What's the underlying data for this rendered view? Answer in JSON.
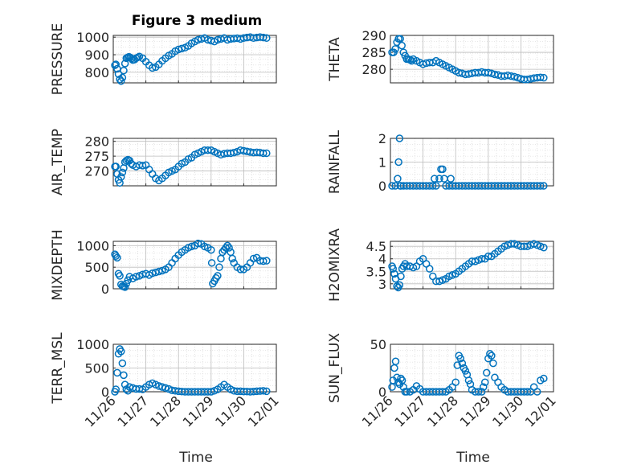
{
  "figure": {
    "title": "Figure 3 medium",
    "xlabel_left": "Time",
    "xlabel_right": "Time",
    "x_tick_labels": [
      "11/26",
      "11/27",
      "11/28",
      "11/29",
      "11/30",
      "12/01"
    ],
    "colors": {
      "marker": "#0072BD",
      "grid": "#d0d0d0",
      "axis": "#262626"
    }
  },
  "chart_data": [
    {
      "id": "pressure",
      "type": "scatter",
      "ylabel": "PRESSURE",
      "xlim": [
        0,
        5
      ],
      "ylim": [
        740,
        1010
      ],
      "y_ticks": [
        800,
        900,
        1000
      ],
      "y_tick_labels": [
        "800",
        "900",
        "1000"
      ],
      "grid": true,
      "marker": "circle-open",
      "x": [
        0.05,
        0.08,
        0.12,
        0.16,
        0.2,
        0.24,
        0.28,
        0.32,
        0.36,
        0.4,
        0.44,
        0.48,
        0.52,
        0.56,
        0.6,
        0.65,
        0.7,
        0.75,
        0.8,
        0.9,
        1.0,
        1.1,
        1.2,
        1.3,
        1.4,
        1.5,
        1.6,
        1.7,
        1.8,
        1.9,
        2.0,
        2.1,
        2.2,
        2.3,
        2.4,
        2.5,
        2.6,
        2.7,
        2.8,
        2.9,
        3.0,
        3.1,
        3.2,
        3.3,
        3.4,
        3.5,
        3.6,
        3.7,
        3.8,
        3.9,
        4.0,
        4.1,
        4.2,
        4.3,
        4.4,
        4.5,
        4.6,
        4.7
      ],
      "y": [
        840,
        845,
        820,
        790,
        760,
        750,
        770,
        810,
        850,
        880,
        885,
        888,
        885,
        878,
        870,
        872,
        880,
        885,
        890,
        880,
        860,
        840,
        825,
        830,
        845,
        865,
        880,
        895,
        905,
        920,
        930,
        935,
        940,
        950,
        965,
        975,
        985,
        990,
        995,
        985,
        980,
        975,
        985,
        990,
        995,
        985,
        990,
        992,
        994,
        990,
        995,
        998,
        1000,
        995,
        998,
        1000,
        998,
        995
      ]
    },
    {
      "id": "theta",
      "type": "scatter",
      "ylabel": "THETA",
      "xlim": [
        0,
        5
      ],
      "ylim": [
        276,
        290
      ],
      "y_ticks": [
        280,
        285,
        290
      ],
      "y_tick_labels": [
        "280",
        "285",
        "290"
      ],
      "grid": true,
      "marker": "circle-open",
      "x": [
        0.05,
        0.1,
        0.15,
        0.2,
        0.25,
        0.3,
        0.35,
        0.4,
        0.45,
        0.5,
        0.55,
        0.6,
        0.65,
        0.7,
        0.8,
        0.9,
        1.0,
        1.1,
        1.2,
        1.3,
        1.4,
        1.5,
        1.6,
        1.7,
        1.8,
        1.9,
        2.0,
        2.1,
        2.2,
        2.3,
        2.4,
        2.5,
        2.6,
        2.7,
        2.8,
        2.9,
        3.0,
        3.1,
        3.2,
        3.3,
        3.4,
        3.5,
        3.6,
        3.7,
        3.8,
        3.9,
        4.0,
        4.1,
        4.2,
        4.3,
        4.4,
        4.5,
        4.6,
        4.7
      ],
      "y": [
        285,
        285,
        286,
        288,
        289,
        289,
        287,
        285,
        284,
        283,
        283,
        282.8,
        282.5,
        283,
        282.5,
        282,
        281.5,
        281.8,
        282,
        282,
        282.5,
        282,
        281.5,
        281,
        280.5,
        280,
        279.5,
        279,
        278.8,
        278.5,
        278.6,
        278.8,
        279,
        279,
        279.2,
        279,
        279,
        278.8,
        278.5,
        278.3,
        278,
        278,
        278.2,
        278,
        277.8,
        277.5,
        277.2,
        277,
        277,
        277.2,
        277.4,
        277.5,
        277.6,
        277.5
      ]
    },
    {
      "id": "air_temp",
      "type": "scatter",
      "ylabel": "AIR_TEMP",
      "xlim": [
        0,
        5
      ],
      "ylim": [
        265,
        281
      ],
      "y_ticks": [
        270,
        275,
        280
      ],
      "y_tick_labels": [
        "270",
        "275",
        "280"
      ],
      "grid": true,
      "marker": "circle-open",
      "x": [
        0.05,
        0.08,
        0.12,
        0.16,
        0.2,
        0.24,
        0.28,
        0.32,
        0.36,
        0.4,
        0.45,
        0.5,
        0.55,
        0.6,
        0.7,
        0.8,
        0.9,
        1.0,
        1.1,
        1.2,
        1.3,
        1.4,
        1.5,
        1.6,
        1.7,
        1.8,
        1.9,
        2.0,
        2.1,
        2.2,
        2.3,
        2.4,
        2.5,
        2.6,
        2.7,
        2.8,
        2.9,
        3.0,
        3.1,
        3.2,
        3.3,
        3.4,
        3.5,
        3.6,
        3.7,
        3.8,
        3.9,
        4.0,
        4.1,
        4.2,
        4.3,
        4.4,
        4.5,
        4.6,
        4.7
      ],
      "y": [
        271.5,
        271.5,
        269,
        267,
        266,
        268,
        269.5,
        271,
        273,
        273.5,
        273.8,
        273.5,
        272.5,
        272,
        271.5,
        272,
        271.8,
        272,
        270.5,
        269,
        267.5,
        266.8,
        267.5,
        268.5,
        269.5,
        270,
        270.5,
        271.5,
        272.5,
        273,
        274,
        274.5,
        275.5,
        276,
        276.5,
        277,
        277,
        277,
        276.5,
        276,
        275.5,
        275.8,
        276,
        276,
        276.2,
        276.5,
        277,
        276.8,
        276.6,
        276.4,
        276.2,
        276.3,
        276.2,
        276.0,
        276.0
      ]
    },
    {
      "id": "rainfall",
      "type": "scatter",
      "ylabel": "RAINFALL",
      "xlim": [
        0,
        5
      ],
      "ylim": [
        0,
        2
      ],
      "y_ticks": [
        0,
        1,
        2
      ],
      "y_tick_labels": [
        "0",
        "1",
        "2"
      ],
      "grid": true,
      "marker": "circle-open",
      "x": [
        0.05,
        0.15,
        0.22,
        0.25,
        0.28,
        0.3,
        0.32,
        0.4,
        0.5,
        0.6,
        0.7,
        0.8,
        0.9,
        1.0,
        1.1,
        1.2,
        1.3,
        1.35,
        1.4,
        1.5,
        1.55,
        1.6,
        1.65,
        1.7,
        1.8,
        1.85,
        1.9,
        2.0,
        2.1,
        2.2,
        2.3,
        2.4,
        2.5,
        2.6,
        2.7,
        2.8,
        2.9,
        3.0,
        3.1,
        3.2,
        3.3,
        3.4,
        3.5,
        3.6,
        3.7,
        3.8,
        3.9,
        4.0,
        4.1,
        4.2,
        4.3,
        4.4,
        4.5,
        4.6,
        4.7
      ],
      "y": [
        0,
        0,
        0.3,
        1,
        2,
        0,
        0,
        0,
        0,
        0,
        0,
        0,
        0,
        0,
        0,
        0,
        0,
        0.3,
        0,
        0.3,
        0.7,
        0.7,
        0.3,
        0,
        0,
        0.3,
        0,
        0,
        0,
        0,
        0,
        0,
        0,
        0,
        0,
        0,
        0,
        0,
        0,
        0,
        0,
        0,
        0,
        0,
        0,
        0,
        0,
        0,
        0,
        0,
        0,
        0,
        0,
        0,
        0
      ]
    },
    {
      "id": "mixdepth",
      "type": "scatter",
      "ylabel": "MIXDEPTH",
      "xlim": [
        0,
        5
      ],
      "ylim": [
        0,
        1100
      ],
      "y_ticks": [
        0,
        500,
        1000
      ],
      "y_tick_labels": [
        "0",
        "500",
        "1000"
      ],
      "grid": true,
      "marker": "circle-open",
      "x": [
        0.05,
        0.08,
        0.12,
        0.16,
        0.2,
        0.24,
        0.28,
        0.32,
        0.36,
        0.4,
        0.45,
        0.5,
        0.6,
        0.7,
        0.8,
        0.9,
        1.0,
        1.1,
        1.2,
        1.3,
        1.4,
        1.5,
        1.6,
        1.7,
        1.8,
        1.9,
        2.0,
        2.1,
        2.2,
        2.3,
        2.4,
        2.5,
        2.6,
        2.7,
        2.8,
        2.9,
        3.0,
        3.02,
        3.05,
        3.1,
        3.15,
        3.2,
        3.25,
        3.3,
        3.35,
        3.4,
        3.45,
        3.5,
        3.55,
        3.6,
        3.65,
        3.7,
        3.8,
        3.9,
        4.0,
        4.1,
        4.2,
        4.3,
        4.4,
        4.5,
        4.6,
        4.7
      ],
      "y": [
        800,
        760,
        720,
        350,
        300,
        100,
        60,
        50,
        40,
        120,
        200,
        280,
        240,
        280,
        300,
        330,
        350,
        320,
        360,
        380,
        400,
        420,
        450,
        500,
        600,
        700,
        780,
        850,
        900,
        950,
        980,
        1000,
        1050,
        1040,
        980,
        950,
        900,
        600,
        120,
        180,
        250,
        300,
        500,
        700,
        850,
        900,
        950,
        1000,
        950,
        850,
        700,
        600,
        500,
        450,
        450,
        500,
        600,
        700,
        720,
        650,
        640,
        650
      ]
    },
    {
      "id": "h2omixra",
      "type": "scatter",
      "ylabel": "H2OMIXRA",
      "xlim": [
        0,
        5
      ],
      "ylim": [
        2.8,
        4.7
      ],
      "y_ticks": [
        3,
        3.5,
        4,
        4.5
      ],
      "y_tick_labels": [
        "3",
        "3.5",
        "4",
        "4.5"
      ],
      "grid": true,
      "marker": "circle-open",
      "x": [
        0.05,
        0.08,
        0.12,
        0.16,
        0.2,
        0.24,
        0.28,
        0.32,
        0.36,
        0.4,
        0.45,
        0.5,
        0.6,
        0.7,
        0.8,
        0.9,
        1.0,
        1.1,
        1.2,
        1.3,
        1.4,
        1.5,
        1.6,
        1.7,
        1.8,
        1.9,
        2.0,
        2.1,
        2.2,
        2.3,
        2.4,
        2.5,
        2.6,
        2.7,
        2.8,
        2.9,
        3.0,
        3.1,
        3.2,
        3.3,
        3.4,
        3.5,
        3.6,
        3.7,
        3.8,
        3.9,
        4.0,
        4.1,
        4.2,
        4.3,
        4.4,
        4.5,
        4.6,
        4.7
      ],
      "y": [
        3.7,
        3.6,
        3.4,
        3.2,
        2.9,
        2.85,
        2.95,
        3.3,
        3.6,
        3.7,
        3.8,
        3.7,
        3.7,
        3.65,
        3.7,
        3.9,
        4.0,
        3.8,
        3.6,
        3.3,
        3.1,
        3.1,
        3.15,
        3.2,
        3.3,
        3.35,
        3.4,
        3.5,
        3.6,
        3.7,
        3.8,
        3.9,
        3.9,
        3.95,
        4.0,
        4.0,
        4.1,
        4.1,
        4.2,
        4.3,
        4.4,
        4.5,
        4.55,
        4.6,
        4.6,
        4.55,
        4.5,
        4.5,
        4.5,
        4.55,
        4.6,
        4.55,
        4.5,
        4.45
      ]
    },
    {
      "id": "terr_msl",
      "type": "scatter",
      "ylabel": "TERR_MSL",
      "xlim": [
        0,
        5
      ],
      "ylim": [
        0,
        1000
      ],
      "y_ticks": [
        0,
        500,
        1000
      ],
      "y_tick_labels": [
        "0",
        "500",
        "1000"
      ],
      "grid": true,
      "marker": "circle-open",
      "x": [
        0.05,
        0.08,
        0.12,
        0.16,
        0.2,
        0.24,
        0.28,
        0.32,
        0.36,
        0.4,
        0.45,
        0.5,
        0.6,
        0.7,
        0.8,
        0.9,
        1.0,
        1.1,
        1.2,
        1.3,
        1.4,
        1.5,
        1.6,
        1.7,
        1.8,
        1.9,
        2.0,
        2.1,
        2.2,
        2.3,
        2.4,
        2.5,
        2.6,
        2.7,
        2.8,
        2.9,
        3.0,
        3.1,
        3.2,
        3.3,
        3.4,
        3.5,
        3.6,
        3.7,
        3.8,
        3.9,
        4.0,
        4.1,
        4.2,
        4.3,
        4.4,
        4.5,
        4.6,
        4.7
      ],
      "y": [
        0,
        50,
        400,
        800,
        900,
        850,
        600,
        350,
        150,
        50,
        20,
        100,
        80,
        60,
        60,
        50,
        100,
        150,
        180,
        150,
        120,
        100,
        80,
        60,
        30,
        20,
        10,
        5,
        0,
        0,
        0,
        0,
        0,
        0,
        0,
        0,
        0,
        20,
        50,
        100,
        150,
        100,
        50,
        20,
        10,
        10,
        5,
        5,
        0,
        5,
        10,
        15,
        20,
        10
      ]
    },
    {
      "id": "sun_flux",
      "type": "scatter",
      "ylabel": "SUN_FLUX",
      "xlim": [
        0,
        5
      ],
      "ylim": [
        0,
        50
      ],
      "y_ticks": [
        0,
        50
      ],
      "y_tick_labels": [
        "0",
        "50"
      ],
      "grid": true,
      "marker": "circle-open",
      "x": [
        0.05,
        0.08,
        0.12,
        0.16,
        0.2,
        0.24,
        0.28,
        0.32,
        0.36,
        0.4,
        0.45,
        0.5,
        0.6,
        0.7,
        0.8,
        0.9,
        1.0,
        1.1,
        1.2,
        1.3,
        1.4,
        1.5,
        1.6,
        1.7,
        1.8,
        1.9,
        2.0,
        2.05,
        2.1,
        2.15,
        2.2,
        2.25,
        2.3,
        2.35,
        2.4,
        2.45,
        2.5,
        2.6,
        2.7,
        2.8,
        2.85,
        2.9,
        2.95,
        3.0,
        3.05,
        3.1,
        3.15,
        3.2,
        3.3,
        3.4,
        3.5,
        3.6,
        3.7,
        3.8,
        3.9,
        4.0,
        4.1,
        4.2,
        4.3,
        4.4,
        4.5,
        4.6,
        4.7
      ],
      "y": [
        5,
        12,
        25,
        32,
        15,
        10,
        8,
        14,
        12,
        5,
        0,
        0,
        0,
        2,
        6,
        3,
        0,
        0,
        0,
        0,
        0,
        0,
        0,
        0,
        2,
        5,
        10,
        28,
        38,
        35,
        30,
        25,
        22,
        18,
        12,
        8,
        2,
        0,
        0,
        0,
        5,
        10,
        20,
        35,
        40,
        38,
        30,
        15,
        10,
        5,
        2,
        0,
        0,
        0,
        0,
        0,
        0,
        0,
        0,
        5,
        0,
        12,
        14
      ]
    }
  ]
}
